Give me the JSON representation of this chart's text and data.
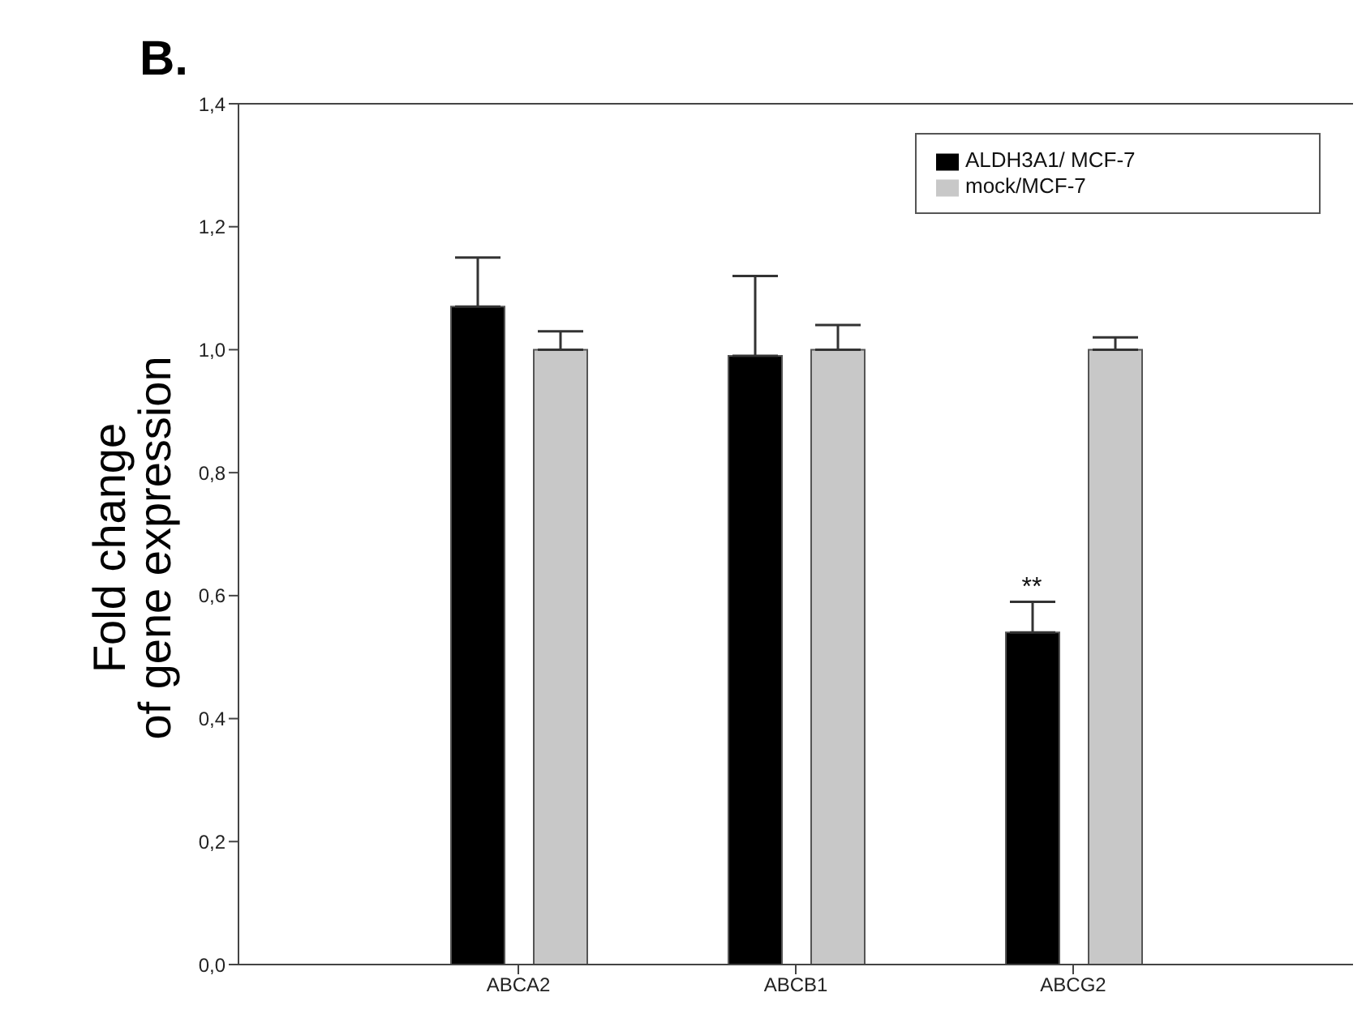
{
  "chart_data": {
    "type": "bar",
    "title": "B.",
    "ylabel": "Fold change\nof gene expression",
    "categories": [
      "ABCA2",
      "ABCB1",
      "ABCG2"
    ],
    "series": [
      {
        "name": "ALDH3A1/ MCF-7",
        "color": "#000000",
        "values": [
          1.07,
          0.99,
          0.54
        ],
        "errors": [
          [
            1.07,
            1.15
          ],
          [
            0.99,
            1.12
          ],
          [
            0.54,
            0.59
          ]
        ]
      },
      {
        "name": "mock/MCF-7",
        "color": "#c8c8c8",
        "values": [
          1.0,
          1.0,
          1.0
        ],
        "errors": [
          [
            1.0,
            1.03
          ],
          [
            1.0,
            1.04
          ],
          [
            1.0,
            1.02
          ]
        ]
      }
    ],
    "ylim": [
      0,
      1.4
    ],
    "yticks": [
      {
        "value": 0,
        "label": "0,0"
      },
      {
        "value": 0.2,
        "label": "0,2"
      },
      {
        "value": 0.4,
        "label": "0,4"
      },
      {
        "value": 0.6,
        "label": "0,6"
      },
      {
        "value": 0.8,
        "label": "0,8"
      },
      {
        "value": 1.0,
        "label": "1,0"
      },
      {
        "value": 1.2,
        "label": "1,2"
      },
      {
        "value": 1.4,
        "label": "1,4"
      }
    ],
    "annotations": [
      "**"
    ],
    "legend": "top right",
    "grid": false
  }
}
